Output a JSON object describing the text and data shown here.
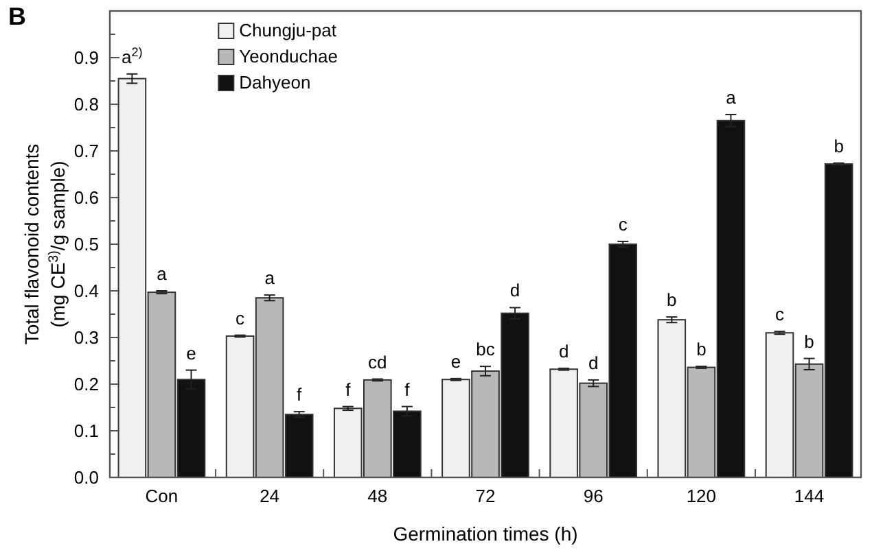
{
  "chart_data": {
    "type": "bar",
    "xlabel": "Germination times (h)",
    "ylabel": "Total flavonoid contents\n(mg CE$^{3)}$/g sample)",
    "categories": [
      "Con",
      "24",
      "48",
      "72",
      "96",
      "120",
      "144"
    ],
    "series": [
      {
        "name": "Chungju-pat",
        "color": "#f0f0f0",
        "values": [
          0.855,
          0.303,
          0.148,
          0.21,
          0.232,
          0.338,
          0.31
        ],
        "errors": [
          0.01,
          0.002,
          0.004,
          0.002,
          0.002,
          0.006,
          0.003
        ]
      },
      {
        "name": "Yeonduchae",
        "color": "#b8b8b8",
        "values": [
          0.397,
          0.385,
          0.209,
          0.228,
          0.202,
          0.236,
          0.243
        ],
        "errors": [
          0.003,
          0.006,
          0.002,
          0.01,
          0.007,
          0.002,
          0.012
        ]
      },
      {
        "name": "Dahyeon",
        "color": "#111111",
        "values": [
          0.21,
          0.135,
          0.142,
          0.352,
          0.5,
          0.765,
          0.672
        ],
        "errors": [
          0.02,
          0.006,
          0.01,
          0.012,
          0.006,
          0.013,
          0.002
        ]
      }
    ],
    "ylim": [
      0,
      1.0
    ],
    "yticks": [
      {
        "value": 0,
        "label": "0.0"
      },
      0.1,
      0.2,
      0.3,
      0.4,
      0.5,
      0.6,
      0.7,
      0.8,
      0.9
    ],
    "legend": "top left",
    "annotations": [
      "B",
      "a$^{2)}$",
      "a",
      "e",
      "c",
      "a",
      "f",
      "f",
      "cd",
      "f",
      "e",
      "bc",
      "d",
      "d",
      "d",
      "c",
      "b",
      "b",
      "a",
      "c",
      "b",
      "b"
    ]
  }
}
